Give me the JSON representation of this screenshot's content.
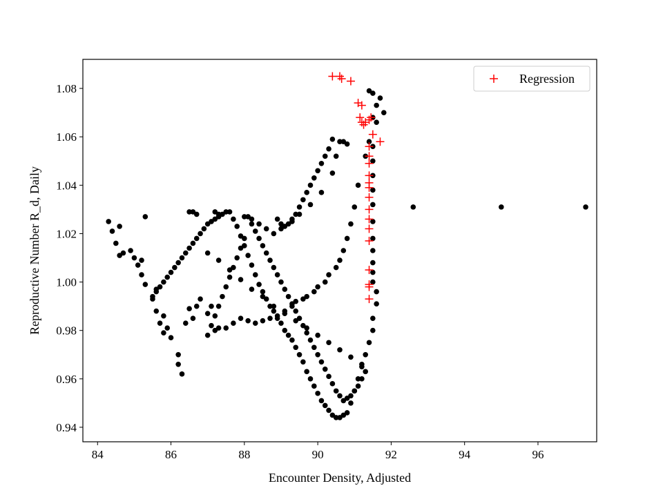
{
  "chart_data": {
    "type": "scatter",
    "xlabel": "Encounter Density, Adjusted",
    "ylabel": "Reproductive Number R_d, Daily",
    "xlim": [
      83.6,
      97.6
    ],
    "ylim": [
      0.934,
      1.092
    ],
    "xticks": [
      "84",
      "86",
      "88",
      "90",
      "92",
      "94",
      "96"
    ],
    "yticks": [
      "0.94",
      "0.96",
      "0.98",
      "1.00",
      "1.02",
      "1.04",
      "1.06",
      "1.08"
    ],
    "grid": false,
    "legend_position": "top-right",
    "series": [
      {
        "marker": "dot",
        "color": "#000000",
        "x": [
          84.3,
          84.4,
          84.5,
          84.6,
          84.6,
          84.7,
          84.9,
          85.0,
          85.1,
          85.2,
          85.2,
          85.3,
          85.3,
          85.5,
          85.6,
          85.6,
          85.7,
          85.8,
          85.8,
          85.9,
          86.0,
          86.2,
          86.2,
          86.3,
          86.4,
          86.5,
          86.6,
          86.7,
          86.8,
          87.0,
          87.1,
          87.2,
          87.3,
          87.5,
          87.7,
          87.9,
          88.1,
          88.3,
          88.5,
          88.7,
          88.9,
          89.1,
          89.3,
          89.4,
          89.6,
          89.7,
          89.9,
          90.0,
          90.2,
          90.3,
          90.5,
          90.6,
          90.7,
          90.8,
          90.9,
          91.0,
          91.1,
          91.3,
          91.4,
          91.5,
          91.6,
          91.7,
          91.8,
          91.4,
          91.5,
          91.6,
          91.5,
          91.5,
          91.5,
          91.5,
          91.5,
          91.5,
          91.5,
          91.5,
          91.5,
          91.5,
          91.5,
          91.6,
          91.6,
          91.5,
          91.5,
          91.4,
          91.3,
          91.2,
          91.1,
          91.0,
          90.9,
          90.8,
          90.7,
          90.6,
          90.5,
          90.4,
          90.3,
          90.2,
          90.1,
          90.0,
          89.9,
          89.8,
          89.7,
          89.6,
          89.5,
          89.4,
          89.3,
          89.2,
          89.1,
          89.0,
          88.9,
          88.8,
          88.7,
          88.6,
          88.5,
          88.4,
          88.3,
          88.2,
          88.1,
          88.0,
          87.9,
          87.8,
          87.7,
          87.6,
          87.5,
          87.4,
          87.3,
          87.2,
          87.1,
          87.0,
          86.9,
          86.8,
          86.7,
          86.6,
          86.5,
          86.4,
          86.3,
          86.2,
          86.1,
          86.0,
          85.9,
          85.8,
          85.7,
          85.6,
          85.5,
          86.5,
          87.0,
          87.3,
          87.6,
          87.9,
          88.2,
          88.5,
          88.8,
          89.1,
          89.4,
          89.7,
          90.0,
          90.3,
          90.6,
          90.9,
          91.2,
          91.3,
          91.2,
          91.1,
          91.0,
          90.9,
          90.8,
          90.7,
          90.6,
          90.5,
          90.4,
          90.3,
          90.2,
          90.1,
          90.0,
          89.9,
          89.8,
          89.7,
          89.6,
          89.5,
          89.4,
          89.3,
          89.2,
          89.1,
          89.0,
          88.9,
          88.8,
          88.7,
          88.6,
          88.5,
          88.4,
          88.3,
          88.2,
          88.1,
          88.0,
          87.9,
          87.8,
          87.7,
          87.6,
          87.5,
          87.4,
          87.3,
          87.2,
          87.1,
          87.0,
          86.6,
          86.7,
          87.2,
          87.3,
          88.0,
          88.2,
          88.4,
          88.6,
          88.8,
          89.0,
          89.3,
          89.5,
          89.8,
          90.1,
          90.4,
          90.5,
          90.6,
          90.7,
          90.8,
          90.4,
          90.3,
          90.2,
          90.1,
          90.0,
          89.9,
          89.8,
          89.7,
          89.6,
          89.5,
          89.4,
          89.3,
          89.2,
          89.1,
          89.0,
          88.9,
          92.6,
          95.0,
          97.3
        ],
        "y": [
          1.025,
          1.021,
          1.016,
          1.023,
          1.011,
          1.012,
          1.013,
          1.01,
          1.007,
          1.009,
          1.003,
          0.999,
          1.027,
          0.993,
          0.988,
          0.997,
          0.983,
          0.979,
          0.986,
          0.981,
          0.977,
          0.97,
          0.966,
          0.962,
          0.983,
          0.989,
          0.985,
          0.99,
          0.993,
          0.987,
          0.99,
          0.98,
          0.981,
          0.981,
          0.983,
          0.985,
          0.984,
          0.983,
          0.984,
          0.985,
          0.986,
          0.988,
          0.99,
          0.992,
          0.993,
          0.994,
          0.996,
          0.998,
          1.0,
          1.003,
          1.006,
          1.009,
          1.013,
          1.018,
          1.024,
          1.031,
          1.04,
          1.052,
          1.058,
          1.068,
          1.073,
          1.076,
          1.07,
          1.079,
          1.078,
          1.066,
          1.056,
          1.05,
          1.044,
          1.038,
          1.032,
          1.025,
          1.018,
          1.013,
          1.008,
          1.004,
          1.0,
          0.996,
          0.991,
          0.985,
          0.98,
          0.975,
          0.97,
          0.965,
          0.96,
          0.955,
          0.95,
          0.946,
          0.945,
          0.944,
          0.944,
          0.945,
          0.947,
          0.949,
          0.951,
          0.954,
          0.957,
          0.96,
          0.963,
          0.967,
          0.97,
          0.973,
          0.976,
          0.978,
          0.98,
          0.983,
          0.985,
          0.988,
          0.99,
          0.993,
          0.996,
          0.999,
          1.003,
          1.007,
          1.011,
          1.015,
          1.019,
          1.023,
          1.026,
          1.029,
          1.029,
          1.028,
          1.027,
          1.026,
          1.025,
          1.024,
          1.022,
          1.02,
          1.018,
          1.016,
          1.014,
          1.012,
          1.01,
          1.008,
          1.006,
          1.004,
          1.002,
          1.0,
          0.998,
          0.996,
          0.994,
          1.029,
          1.012,
          1.009,
          1.005,
          1.001,
          0.997,
          0.994,
          0.99,
          0.987,
          0.984,
          0.981,
          0.978,
          0.975,
          0.972,
          0.969,
          0.966,
          0.963,
          0.96,
          0.957,
          0.955,
          0.953,
          0.952,
          0.951,
          0.953,
          0.955,
          0.958,
          0.961,
          0.964,
          0.967,
          0.97,
          0.973,
          0.976,
          0.979,
          0.982,
          0.985,
          0.988,
          0.991,
          0.994,
          0.997,
          1.0,
          1.003,
          1.006,
          1.009,
          1.012,
          1.015,
          1.018,
          1.021,
          1.024,
          1.027,
          1.018,
          1.014,
          1.01,
          1.006,
          1.002,
          0.998,
          0.994,
          0.99,
          0.986,
          0.982,
          0.978,
          1.029,
          1.028,
          1.029,
          1.028,
          1.027,
          1.026,
          1.024,
          1.022,
          1.02,
          1.022,
          1.025,
          1.028,
          1.032,
          1.037,
          1.045,
          1.052,
          1.058,
          1.058,
          1.057,
          1.059,
          1.055,
          1.052,
          1.049,
          1.046,
          1.043,
          1.04,
          1.037,
          1.034,
          1.031,
          1.028,
          1.026,
          1.024,
          1.023,
          1.024,
          1.026,
          1.031,
          1.031,
          1.031
        ]
      },
      {
        "name": "Regression",
        "marker": "plus",
        "color": "#ff0000",
        "x": [
          90.4,
          90.6,
          90.65,
          90.9,
          91.1,
          91.2,
          91.15,
          91.2,
          91.25,
          91.3,
          91.4,
          91.45,
          91.5,
          91.7,
          91.4,
          91.4,
          91.4,
          91.4,
          91.4,
          91.4,
          91.4,
          91.4,
          91.4,
          91.4,
          91.4,
          91.4,
          91.4,
          91.4,
          91.4
        ],
        "y": [
          1.085,
          1.085,
          1.084,
          1.083,
          1.074,
          1.073,
          1.068,
          1.066,
          1.065,
          1.066,
          1.067,
          1.068,
          1.061,
          1.058,
          1.056,
          1.052,
          1.049,
          1.044,
          1.041,
          1.039,
          1.035,
          1.03,
          1.026,
          1.022,
          1.017,
          1.005,
          0.999,
          0.998,
          0.993
        ]
      }
    ]
  }
}
